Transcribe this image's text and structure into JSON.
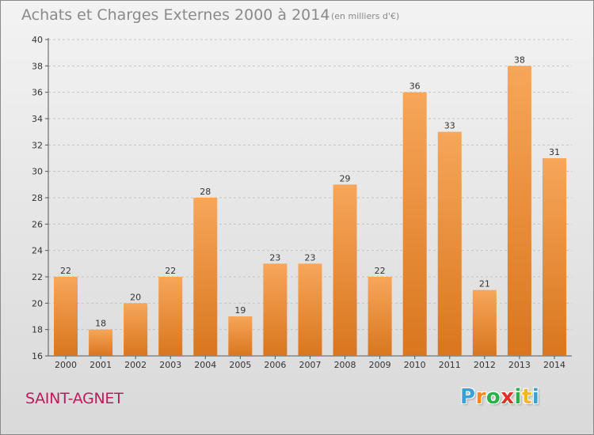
{
  "chart_data": {
    "type": "bar",
    "title": "Achats et Charges Externes 2000 à 2014",
    "subtitle": "(en milliers d'€)",
    "categories": [
      "2000",
      "2001",
      "2002",
      "2003",
      "2004",
      "2005",
      "2006",
      "2007",
      "2008",
      "2009",
      "2010",
      "2011",
      "2012",
      "2013",
      "2014"
    ],
    "values": [
      22,
      18,
      20,
      22,
      28,
      19,
      23,
      23,
      29,
      22,
      36,
      33,
      21,
      38,
      31
    ],
    "ylim": [
      16,
      40
    ],
    "yticks": [
      16,
      18,
      20,
      22,
      24,
      26,
      28,
      30,
      32,
      34,
      36,
      38,
      40
    ],
    "xlabel": "",
    "ylabel": "",
    "grid": "horizontal-dashed",
    "bar_color": "#f0922f"
  },
  "commune_name": "SAINT-AGNET",
  "logo": {
    "letters": [
      "P",
      "r",
      "o",
      "x",
      "i",
      "t",
      "i"
    ],
    "colors": [
      "#3aa0d8",
      "#f08a1c",
      "#2bb04a",
      "#e0302a",
      "#2bb04a",
      "#f0b81c",
      "#3aa0d8"
    ]
  }
}
